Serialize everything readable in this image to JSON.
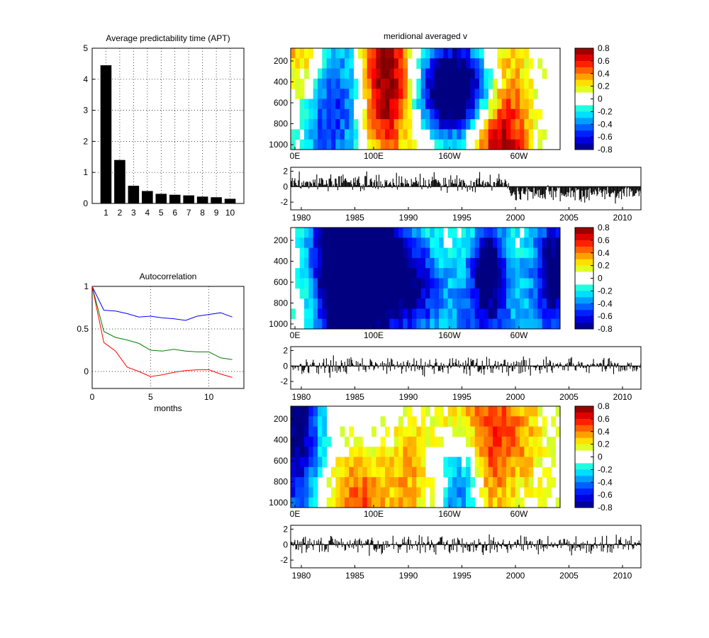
{
  "chart_data": [
    {
      "id": "apt",
      "type": "bar",
      "title": "Average predictability time (APT)",
      "categories": [
        "1",
        "2",
        "3",
        "4",
        "5",
        "6",
        "7",
        "8",
        "9",
        "10"
      ],
      "values": [
        4.45,
        1.4,
        0.57,
        0.4,
        0.31,
        0.28,
        0.26,
        0.22,
        0.2,
        0.15
      ],
      "ylim": [
        0,
        5
      ],
      "yticks": [
        "0",
        "1",
        "2",
        "3",
        "4",
        "5"
      ],
      "grid": true,
      "color": "#000000"
    },
    {
      "id": "autocorrelation",
      "type": "line",
      "title": "Autocorrelation",
      "xlabel": "months",
      "xlim": [
        0,
        13
      ],
      "ylim": [
        -0.2,
        1
      ],
      "xticks": [
        "0",
        "5",
        "10"
      ],
      "yticks": [
        "0",
        "0.5",
        "1"
      ],
      "grid": true,
      "x": [
        0,
        1,
        2,
        3,
        4,
        5,
        6,
        7,
        8,
        9,
        10,
        11,
        12
      ],
      "series": [
        {
          "color": "#0000ff",
          "values": [
            1.0,
            0.72,
            0.71,
            0.68,
            0.64,
            0.65,
            0.63,
            0.62,
            0.6,
            0.65,
            0.67,
            0.69,
            0.64
          ]
        },
        {
          "color": "#007f00",
          "values": [
            1.0,
            0.47,
            0.4,
            0.37,
            0.33,
            0.25,
            0.24,
            0.26,
            0.24,
            0.23,
            0.23,
            0.16,
            0.14
          ]
        },
        {
          "color": "#ff0000",
          "values": [
            1.0,
            0.34,
            0.24,
            0.05,
            0.0,
            -0.06,
            -0.04,
            -0.01,
            0.01,
            0.02,
            0.02,
            -0.03,
            -0.07
          ]
        }
      ]
    },
    {
      "id": "hov1",
      "type": "heatmap",
      "title": "meridional averaged v",
      "xticks": [
        "0E",
        "100E",
        "160W",
        "60W"
      ],
      "yticks": [
        "200",
        "400",
        "600",
        "800",
        "1000"
      ],
      "clim": [
        -0.8,
        0.8
      ],
      "pattern_seed": 11,
      "colorbar_ticks": [
        "0.8",
        "0.6",
        "0.4",
        "0.2",
        "0",
        "-0.2",
        "-0.4",
        "-0.6",
        "-0.8"
      ]
    },
    {
      "id": "ts1",
      "type": "bar",
      "xticks": [
        "1980",
        "1985",
        "1990",
        "1995",
        "2000",
        "2005",
        "2010"
      ],
      "yticks": [
        "2",
        "0",
        "-2"
      ],
      "ylim": [
        -3,
        2.5
      ],
      "trend": "shift",
      "noise_seed": 3
    },
    {
      "id": "hov2",
      "type": "heatmap",
      "xticks": [
        "0E",
        "100E",
        "160W",
        "60W"
      ],
      "yticks": [
        "200",
        "400",
        "600",
        "800",
        "1000"
      ],
      "clim": [
        -0.8,
        0.8
      ],
      "pattern_seed": 27,
      "colorbar_ticks": [
        "0.8",
        "0.6",
        "0.4",
        "0.2",
        "0",
        "-0.2",
        "-0.4",
        "-0.6",
        "-0.8"
      ]
    },
    {
      "id": "ts2",
      "type": "bar",
      "xticks": [
        "1980",
        "1985",
        "1990",
        "1995",
        "2000",
        "2005",
        "2010"
      ],
      "yticks": [
        "2",
        "0",
        "-2"
      ],
      "ylim": [
        -3,
        2.5
      ],
      "trend": "none",
      "noise_seed": 17
    },
    {
      "id": "hov3",
      "type": "heatmap",
      "xticks": [
        "0E",
        "100E",
        "160W",
        "60W"
      ],
      "yticks": [
        "200",
        "400",
        "600",
        "800",
        "1000"
      ],
      "clim": [
        -0.8,
        0.8
      ],
      "pattern_seed": 41,
      "colorbar_ticks": [
        "0.8",
        "0.6",
        "0.4",
        "0.2",
        "0",
        "-0.2",
        "-0.4",
        "-0.6",
        "-0.8"
      ]
    },
    {
      "id": "ts3",
      "type": "bar",
      "xticks": [
        "1980",
        "1985",
        "1990",
        "1995",
        "2000",
        "2005",
        "2010"
      ],
      "yticks": [
        "2",
        "0",
        "-2"
      ],
      "ylim": [
        -3,
        2.5
      ],
      "trend": "none",
      "noise_seed": 29
    }
  ]
}
